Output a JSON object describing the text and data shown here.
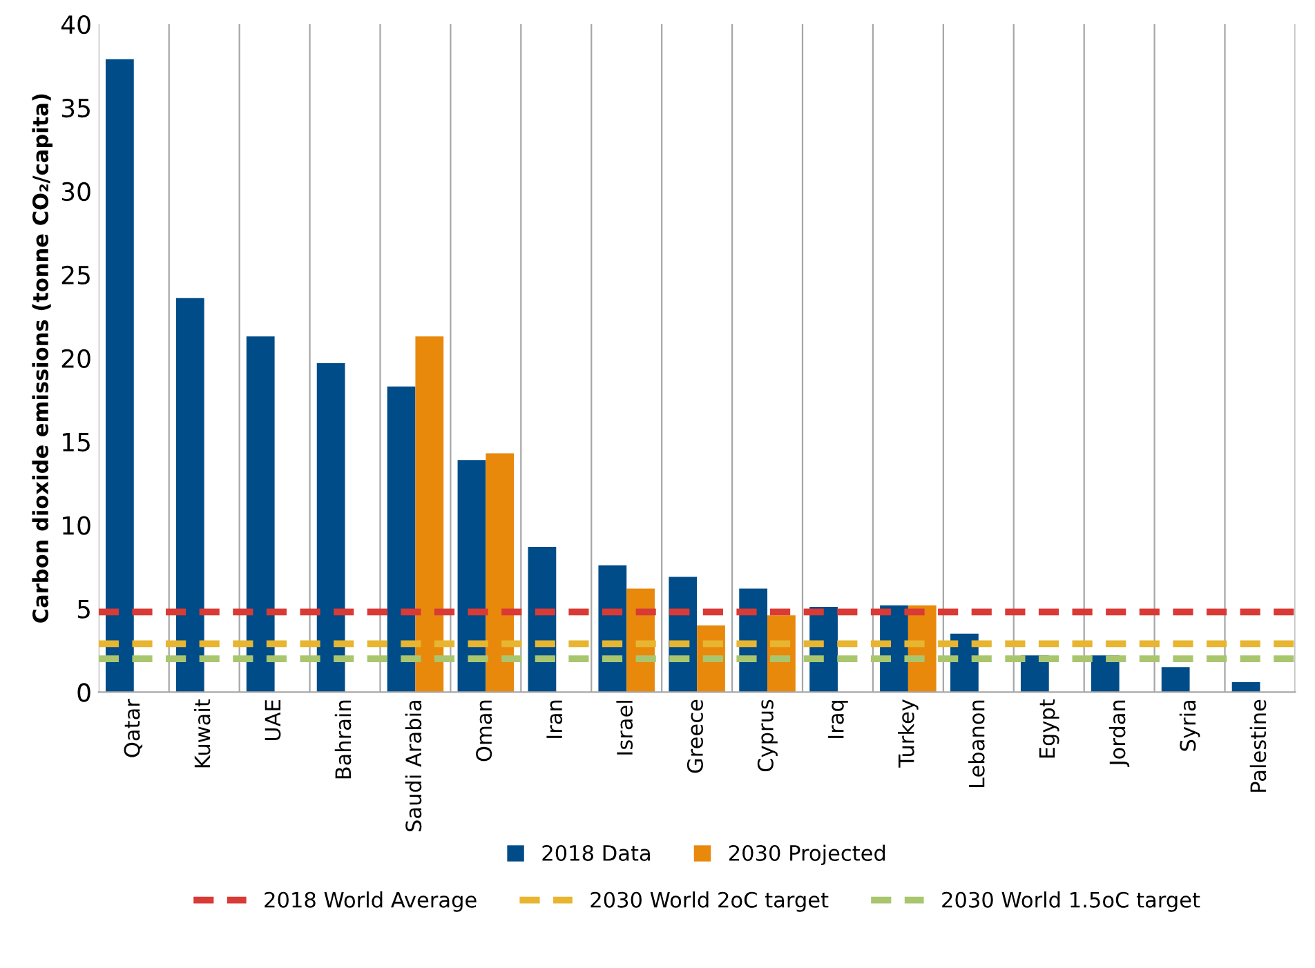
{
  "chart_data": {
    "type": "bar",
    "ylabel": "Carbon dioxide emissions (tonne CO₂/capita)",
    "categories": [
      "Qatar",
      "Kuwait",
      "UAE",
      "Bahrain",
      "Saudi Arabia",
      "Oman",
      "Iran",
      "Israel",
      "Greece",
      "Cyprus",
      "Iraq",
      "Turkey",
      "Lebanon",
      "Egypt",
      "Jordan",
      "Syria",
      "Palestine"
    ],
    "series": [
      {
        "name": "2018 Data",
        "color": "#004c88",
        "values": [
          37.9,
          23.6,
          21.3,
          19.7,
          18.3,
          13.9,
          8.7,
          7.6,
          6.9,
          6.2,
          5.1,
          5.2,
          3.5,
          2.2,
          2.2,
          1.5,
          0.6
        ]
      },
      {
        "name": "2030 Projected",
        "color": "#e8890c",
        "values": [
          null,
          null,
          null,
          null,
          21.3,
          14.3,
          null,
          6.2,
          4.0,
          4.6,
          null,
          5.2,
          null,
          null,
          null,
          null,
          null
        ]
      }
    ],
    "ref_lines": [
      {
        "axis": "y",
        "value": 4.8,
        "label": "2018 World Average",
        "color": "#d93a35",
        "line_style": "dashed"
      },
      {
        "axis": "y",
        "value": 2.9,
        "label": "2030 World 2oC target",
        "color": "#e8b530",
        "line_style": "dashed"
      },
      {
        "axis": "y",
        "value": 2.0,
        "label": "2030 World 1.5oC target",
        "color": "#a9c66e",
        "line_style": "dashed"
      }
    ],
    "ylim": [
      0,
      40
    ],
    "yticks": [
      0,
      5,
      10,
      15,
      20,
      25,
      30,
      35,
      40
    ],
    "grid": "x",
    "legend": "bottom"
  }
}
